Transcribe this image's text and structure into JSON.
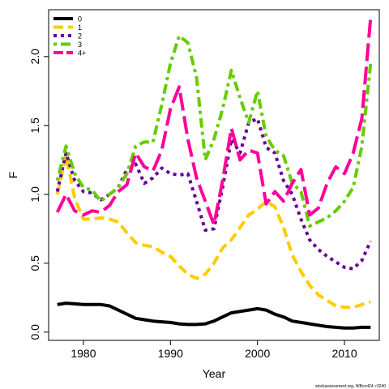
{
  "chart_data": {
    "type": "line",
    "title": "",
    "xlabel": "Year",
    "ylabel": "F",
    "xlim": [
      1976,
      2014
    ],
    "ylim": [
      -0.06,
      2.34
    ],
    "xticks": [
      1980,
      1990,
      2000,
      2010
    ],
    "yticks": [
      0.0,
      0.5,
      1.0,
      1.5,
      2.0
    ],
    "ytick_labels": [
      "0.0",
      "0.5",
      "1.0",
      "1.5",
      "2.0"
    ],
    "grid": false,
    "legend_position": "top-left",
    "series": [
      {
        "name": "0",
        "color": "#000000",
        "dash": "solid",
        "x": [
          1977,
          1978,
          1979,
          1980,
          1981,
          1982,
          1983,
          1984,
          1985,
          1986,
          1987,
          1988,
          1989,
          1990,
          1991,
          1992,
          1993,
          1994,
          1995,
          1996,
          1997,
          1998,
          1999,
          2000,
          2001,
          2002,
          2003,
          2004,
          2005,
          2006,
          2007,
          2008,
          2009,
          2010,
          2011,
          2012,
          2013
        ],
        "values": [
          0.2,
          0.21,
          0.205,
          0.2,
          0.2,
          0.2,
          0.19,
          0.16,
          0.13,
          0.1,
          0.09,
          0.08,
          0.075,
          0.07,
          0.06,
          0.055,
          0.055,
          0.06,
          0.08,
          0.11,
          0.14,
          0.15,
          0.16,
          0.17,
          0.16,
          0.13,
          0.11,
          0.08,
          0.07,
          0.06,
          0.05,
          0.04,
          0.035,
          0.03,
          0.03,
          0.035,
          0.035
        ]
      },
      {
        "name": "1",
        "color": "#ffcc00",
        "dash": "dashed",
        "x": [
          1977,
          1978,
          1979,
          1980,
          1981,
          1982,
          1983,
          1984,
          1985,
          1986,
          1987,
          1988,
          1989,
          1990,
          1991,
          1992,
          1993,
          1994,
          1995,
          1996,
          1997,
          1998,
          1999,
          2000,
          2001,
          2002,
          2003,
          2004,
          2005,
          2006,
          2007,
          2008,
          2009,
          2010,
          2011,
          2012,
          2013
        ],
        "values": [
          1.0,
          1.28,
          0.97,
          0.82,
          0.82,
          0.83,
          0.82,
          0.8,
          0.72,
          0.65,
          0.63,
          0.62,
          0.58,
          0.55,
          0.48,
          0.42,
          0.39,
          0.42,
          0.5,
          0.61,
          0.67,
          0.76,
          0.85,
          0.89,
          0.95,
          0.91,
          0.76,
          0.56,
          0.44,
          0.34,
          0.27,
          0.23,
          0.19,
          0.18,
          0.18,
          0.2,
          0.22
        ]
      },
      {
        "name": "2",
        "color": "#660099",
        "dash": "dotted",
        "x": [
          1977,
          1978,
          1979,
          1980,
          1981,
          1982,
          1983,
          1984,
          1985,
          1986,
          1987,
          1988,
          1989,
          1990,
          1991,
          1992,
          1993,
          1994,
          1995,
          1996,
          1997,
          1998,
          1999,
          2000,
          2001,
          2002,
          2003,
          2004,
          2005,
          2006,
          2007,
          2008,
          2009,
          2010,
          2011,
          2012,
          2013
        ],
        "values": [
          1.02,
          1.3,
          1.1,
          1.02,
          1.01,
          0.96,
          1.0,
          1.05,
          1.18,
          1.22,
          1.08,
          1.12,
          1.19,
          1.15,
          1.14,
          1.15,
          0.95,
          0.74,
          0.75,
          1.05,
          1.4,
          1.3,
          1.52,
          1.55,
          1.34,
          1.3,
          1.1,
          1.0,
          0.82,
          0.67,
          0.6,
          0.55,
          0.51,
          0.47,
          0.46,
          0.52,
          0.66
        ]
      },
      {
        "name": "3",
        "color": "#66cc00",
        "dash": "dashdot",
        "x": [
          1977,
          1978,
          1979,
          1980,
          1981,
          1982,
          1983,
          1984,
          1985,
          1986,
          1987,
          1988,
          1989,
          1990,
          1991,
          1992,
          1993,
          1994,
          1995,
          1996,
          1997,
          1998,
          1999,
          2000,
          2001,
          2002,
          2003,
          2004,
          2005,
          2006,
          2007,
          2008,
          2009,
          2010,
          2011,
          2012,
          2013
        ],
        "values": [
          1.1,
          1.35,
          1.15,
          1.05,
          1.03,
          0.95,
          1.0,
          1.05,
          1.15,
          1.35,
          1.38,
          1.38,
          1.65,
          1.95,
          2.15,
          2.1,
          1.85,
          1.25,
          1.4,
          1.62,
          1.9,
          1.7,
          1.52,
          1.75,
          1.42,
          1.32,
          1.28,
          1.08,
          1.02,
          0.77,
          0.8,
          0.83,
          0.88,
          0.95,
          1.05,
          1.35,
          1.95
        ]
      },
      {
        "name": "4+",
        "color": "#ff0099",
        "dash": "longdash",
        "x": [
          1977,
          1978,
          1979,
          1980,
          1981,
          1982,
          1983,
          1984,
          1985,
          1986,
          1987,
          1988,
          1989,
          1990,
          1991,
          1992,
          1993,
          1994,
          1995,
          1996,
          1997,
          1998,
          1999,
          2000,
          2001,
          2002,
          2003,
          2004,
          2005,
          2006,
          2007,
          2008,
          2009,
          2010,
          2011,
          2012,
          2013
        ],
        "values": [
          0.87,
          1.0,
          0.88,
          0.85,
          0.88,
          0.87,
          0.92,
          1.02,
          1.07,
          1.3,
          1.2,
          1.17,
          1.32,
          1.62,
          1.78,
          1.4,
          1.12,
          0.95,
          0.78,
          1.1,
          1.48,
          1.25,
          1.32,
          1.3,
          0.93,
          1.02,
          0.95,
          1.08,
          1.18,
          0.85,
          0.9,
          1.08,
          1.2,
          1.15,
          1.3,
          1.55,
          2.28
        ]
      }
    ]
  },
  "footer": {
    "credit": "stockassessment.org, WBcod24, r3240"
  }
}
